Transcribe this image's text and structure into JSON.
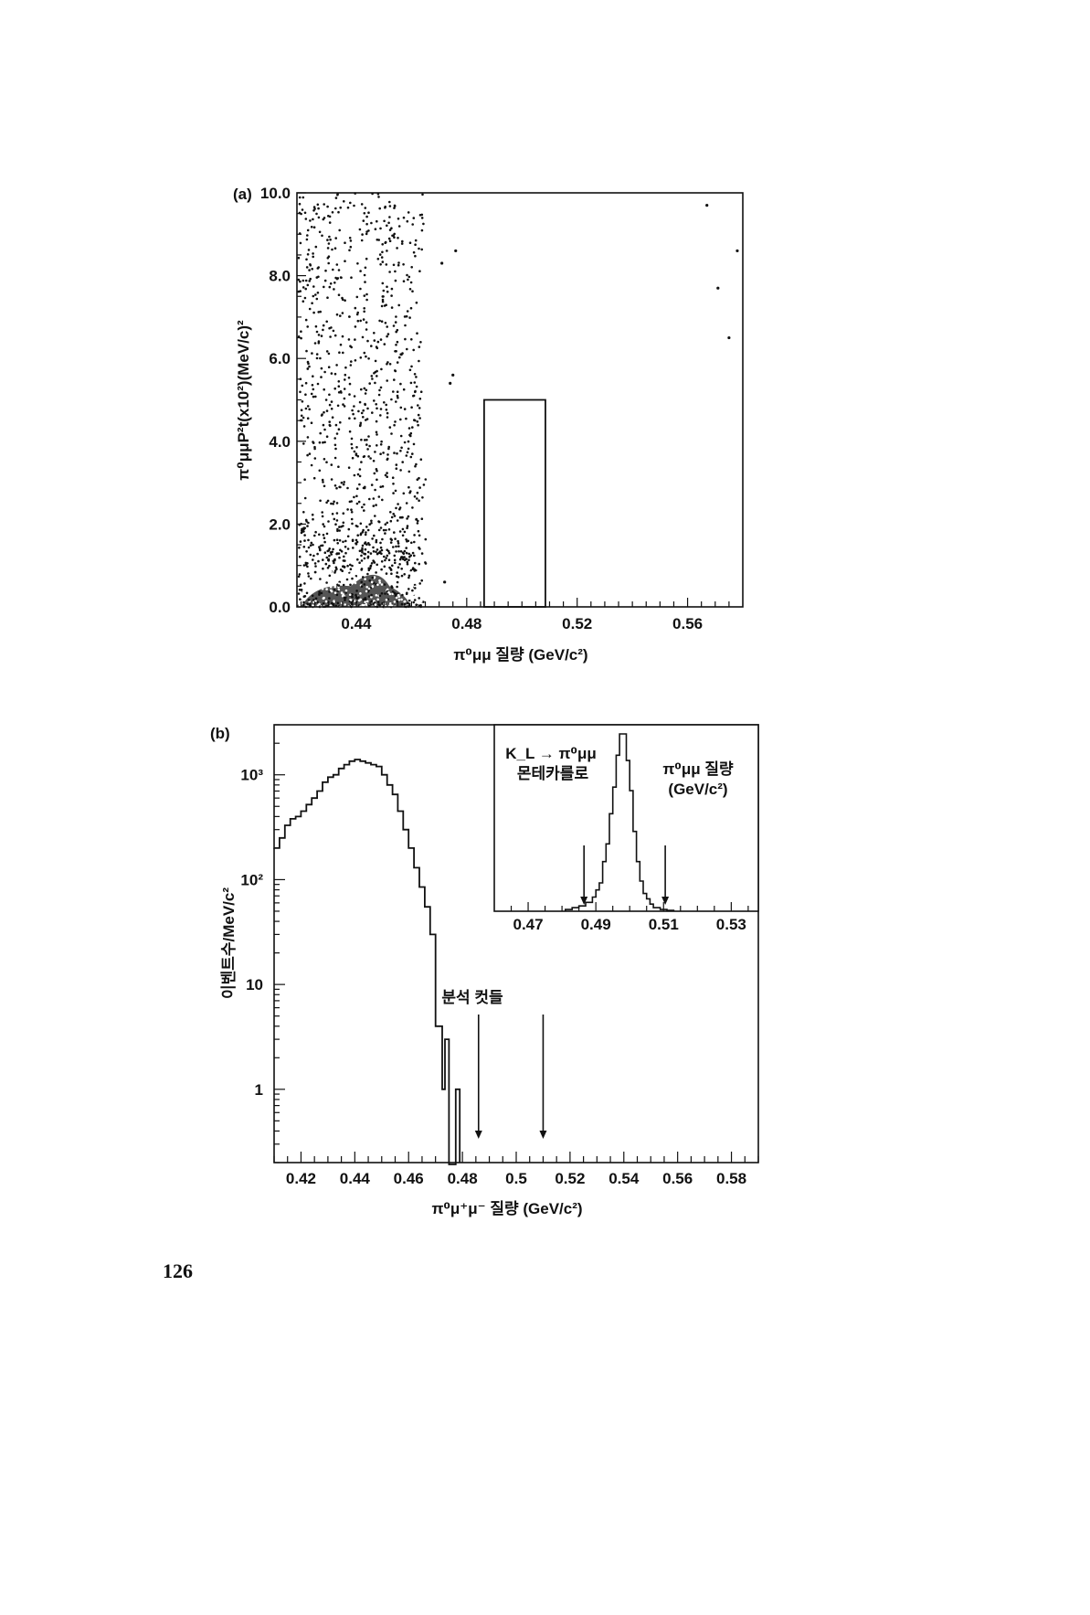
{
  "page_number": "126",
  "chart_data": [
    {
      "id": "a",
      "panel_label": "(a)",
      "type": "scatter",
      "xlabel": "π⁰μμ 질량 (GeV/c²)",
      "ylabel": "π⁰μμP²t(x10²)(MeV/c)²",
      "xlim": [
        0.4185,
        0.58
      ],
      "ylim": [
        0,
        10
      ],
      "xticks": [
        0.44,
        0.48,
        0.52,
        0.56
      ],
      "xtick_labels": [
        "0.44",
        "0.48",
        "0.52",
        "0.56"
      ],
      "yticks": [
        0,
        2,
        4,
        6,
        8,
        10
      ],
      "ytick_labels": [
        "0.0",
        "2.0",
        "4.0",
        "6.0",
        "8.0",
        "10.0"
      ],
      "dense_region": {
        "x_range": [
          0.419,
          0.466
        ],
        "y_range": [
          0,
          10
        ],
        "approx_points": 1400,
        "high_density_core": {
          "x_range": [
            0.42,
            0.46
          ],
          "y_range": [
            0,
            1
          ]
        }
      },
      "isolated_points": [
        {
          "x": 0.476,
          "y": 8.6
        },
        {
          "x": 0.475,
          "y": 5.6
        },
        {
          "x": 0.474,
          "y": 5.4
        },
        {
          "x": 0.471,
          "y": 8.3
        },
        {
          "x": 0.472,
          "y": 0.6
        },
        {
          "x": 0.567,
          "y": 9.7
        },
        {
          "x": 0.571,
          "y": 7.7
        },
        {
          "x": 0.578,
          "y": 8.6
        },
        {
          "x": 0.575,
          "y": 6.5
        }
      ],
      "signal_box": {
        "x_range": [
          0.4863,
          0.5085
        ],
        "y_range": [
          0,
          5.0
        ]
      },
      "grid": false
    },
    {
      "id": "b",
      "panel_label": "(b)",
      "type": "histogram",
      "xlabel": "π⁰μ⁺μ⁻ 질량 (GeV/c²)",
      "ylabel": "이벤트수/MeV/c²",
      "yscale": "log",
      "xlim": [
        0.41,
        0.59
      ],
      "ylim": [
        0.2,
        3000
      ],
      "xticks": [
        0.42,
        0.44,
        0.46,
        0.48,
        0.5,
        0.52,
        0.54,
        0.56,
        0.58
      ],
      "xtick_labels": [
        "0.42",
        "0.44",
        "0.46",
        "0.48",
        "0.5",
        "0.52",
        "0.54",
        "0.56",
        "0.58"
      ],
      "yticks": [
        1,
        10,
        100,
        1000
      ],
      "ytick_labels": [
        "1",
        "10",
        "10²",
        "10³"
      ],
      "bin_edges": [
        0.41,
        0.412,
        0.414,
        0.416,
        0.418,
        0.42,
        0.422,
        0.424,
        0.426,
        0.428,
        0.43,
        0.432,
        0.434,
        0.436,
        0.438,
        0.44,
        0.442,
        0.444,
        0.446,
        0.448,
        0.45,
        0.452,
        0.454,
        0.456,
        0.458,
        0.46,
        0.462,
        0.464,
        0.466,
        0.468,
        0.47,
        0.4725,
        0.4735,
        0.475,
        0.4775,
        0.479
      ],
      "values": [
        200,
        250,
        330,
        380,
        400,
        450,
        520,
        600,
        700,
        850,
        950,
        1000,
        1150,
        1250,
        1350,
        1400,
        1350,
        1300,
        1250,
        1200,
        1000,
        800,
        650,
        450,
        300,
        200,
        130,
        85,
        55,
        30,
        4,
        1,
        3,
        0,
        1
      ],
      "annotation": "분석 컷들",
      "cut_arrows_x": [
        0.486,
        0.51
      ],
      "inset": {
        "type": "histogram",
        "title_line1": "K_L → π⁰μμ",
        "title_line2": "몬테카를로",
        "xlabel_line1": "π⁰μμ 질량",
        "xlabel_line2": "(GeV/c²)",
        "xlim": [
          0.46,
          0.538
        ],
        "ylim": [
          0,
          100
        ],
        "xticks": [
          0.47,
          0.49,
          0.51,
          0.53
        ],
        "xtick_labels": [
          "0.47",
          "0.49",
          "0.51",
          "0.53"
        ],
        "bin_edges": [
          0.481,
          0.483,
          0.485,
          0.487,
          0.489,
          0.49,
          0.491,
          0.492,
          0.493,
          0.494,
          0.495,
          0.496,
          0.497,
          0.498,
          0.499,
          0.5,
          0.501,
          0.502,
          0.503,
          0.504,
          0.505,
          0.506,
          0.507,
          0.509,
          0.511,
          0.513
        ],
        "values": [
          1,
          2,
          3,
          5,
          8,
          12,
          16,
          28,
          38,
          55,
          70,
          88,
          100,
          100,
          85,
          68,
          45,
          28,
          17,
          10,
          7,
          4,
          2,
          1,
          0.5
        ],
        "cut_arrows_x": [
          0.4865,
          0.5105
        ]
      }
    }
  ]
}
